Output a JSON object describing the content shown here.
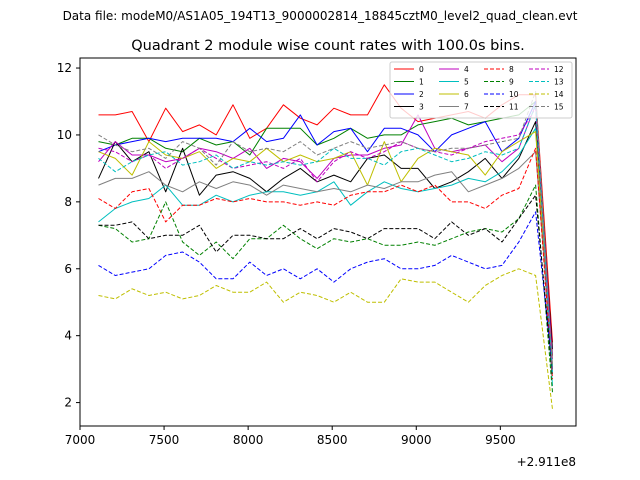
{
  "chart_data": {
    "type": "line",
    "suptitle": "Data file: modeM0/AS1A05_194T13_9000002814_18845cztM0_level2_quad_clean.evt",
    "title": "Quadrant 2 module wise count rates with 100.0s bins.",
    "xlabel": "",
    "ylabel": "",
    "x_offset_label": "+2.911e8",
    "xlim": [
      7000,
      9950
    ],
    "ylim": [
      1.3,
      12.3
    ],
    "x_ticks": [
      7000,
      7500,
      8000,
      8500,
      9000,
      9500
    ],
    "x_tick_labels": [
      "7000",
      "7500",
      "8000",
      "8500",
      "9000",
      "9500"
    ],
    "y_ticks": [
      2,
      4,
      6,
      8,
      10,
      12
    ],
    "y_tick_labels": [
      "2",
      "4",
      "6",
      "8",
      "10",
      "12"
    ],
    "grid": false,
    "legend_position": "top-right",
    "x": [
      7110,
      7210,
      7310,
      7410,
      7510,
      7610,
      7710,
      7810,
      7910,
      8010,
      8110,
      8210,
      8310,
      8410,
      8510,
      8610,
      8710,
      8810,
      8910,
      9010,
      9110,
      9210,
      9310,
      9410,
      9510,
      9610,
      9710,
      9810
    ],
    "series": [
      {
        "name": "0",
        "color": "#ff0000",
        "dash": "solid",
        "values": [
          10.6,
          10.6,
          10.7,
          9.8,
          10.8,
          10.1,
          10.3,
          10.0,
          10.9,
          9.9,
          10.2,
          10.9,
          10.5,
          10.3,
          10.8,
          10.6,
          10.6,
          11.5,
          10.8,
          10.4,
          10.5,
          10.6,
          10.7,
          10.5,
          10.9,
          11.2,
          11.2,
          3.8
        ]
      },
      {
        "name": "1",
        "color": "#008000",
        "dash": "solid",
        "values": [
          9.8,
          9.7,
          9.9,
          9.9,
          9.6,
          9.5,
          9.9,
          9.7,
          9.8,
          9.4,
          10.2,
          10.2,
          10.2,
          9.7,
          9.9,
          10.2,
          9.9,
          10.0,
          10.0,
          10.3,
          10.4,
          10.5,
          10.3,
          10.4,
          10.5,
          10.6,
          11.0,
          3.4
        ]
      },
      {
        "name": "2",
        "color": "#0000ff",
        "dash": "solid",
        "values": [
          9.5,
          9.7,
          9.8,
          9.9,
          9.8,
          9.9,
          9.9,
          9.9,
          9.8,
          10.2,
          9.8,
          9.9,
          10.6,
          9.7,
          10.1,
          10.2,
          9.5,
          10.2,
          10.2,
          10.0,
          9.5,
          10.0,
          10.2,
          10.4,
          9.5,
          9.9,
          11.0,
          3.0
        ]
      },
      {
        "name": "3",
        "color": "#000000",
        "dash": "solid",
        "values": [
          8.7,
          9.8,
          9.2,
          9.5,
          8.3,
          9.6,
          8.2,
          8.8,
          8.9,
          8.7,
          8.3,
          8.7,
          9.0,
          8.6,
          8.8,
          8.6,
          9.3,
          9.4,
          9.0,
          9.0,
          8.4,
          8.6,
          8.9,
          9.3,
          8.7,
          9.3,
          10.4,
          3.6
        ]
      },
      {
        "name": "4",
        "color": "#bf00bf",
        "dash": "solid",
        "values": [
          9.2,
          9.8,
          9.4,
          9.4,
          9.2,
          9.3,
          9.6,
          9.5,
          9.3,
          9.6,
          9.0,
          9.3,
          9.2,
          8.7,
          9.3,
          9.4,
          9.4,
          9.6,
          9.7,
          10.6,
          9.6,
          9.5,
          9.6,
          9.7,
          9.2,
          9.6,
          10.9,
          3.3
        ]
      },
      {
        "name": "5",
        "color": "#00bfbf",
        "dash": "solid",
        "values": [
          7.4,
          7.8,
          8.0,
          8.1,
          8.5,
          7.9,
          7.9,
          8.2,
          8.0,
          8.2,
          8.3,
          8.3,
          8.2,
          8.3,
          8.6,
          7.9,
          8.3,
          8.6,
          8.4,
          8.3,
          8.4,
          8.5,
          8.7,
          8.6,
          8.9,
          9.4,
          10.2,
          2.5
        ]
      },
      {
        "name": "6",
        "color": "#bfbf00",
        "dash": "solid",
        "values": [
          9.5,
          9.3,
          8.8,
          9.8,
          9.4,
          9.3,
          9.5,
          9.0,
          9.3,
          9.2,
          9.6,
          9.2,
          9.4,
          9.2,
          9.3,
          9.5,
          8.5,
          9.8,
          8.6,
          9.3,
          9.6,
          9.5,
          9.4,
          8.8,
          9.5,
          9.8,
          10.1,
          3.1
        ]
      },
      {
        "name": "7",
        "color": "#808080",
        "dash": "solid",
        "values": [
          8.5,
          8.7,
          8.7,
          8.9,
          8.5,
          8.3,
          8.6,
          8.4,
          8.6,
          8.5,
          8.2,
          8.5,
          8.4,
          8.3,
          8.4,
          8.3,
          8.5,
          8.4,
          8.6,
          8.6,
          8.8,
          8.9,
          8.3,
          8.5,
          8.7,
          9.0,
          9.5,
          3.1
        ]
      },
      {
        "name": "8",
        "color": "#ff0000",
        "dash": "dashed",
        "values": [
          8.1,
          7.8,
          8.3,
          8.4,
          7.4,
          7.9,
          7.9,
          8.1,
          8.0,
          8.1,
          8.0,
          8.0,
          7.9,
          8.0,
          7.9,
          8.2,
          8.3,
          8.3,
          8.5,
          8.3,
          8.5,
          8.0,
          8.0,
          7.8,
          8.2,
          8.4,
          9.6,
          2.7
        ]
      },
      {
        "name": "9",
        "color": "#008000",
        "dash": "dashed",
        "values": [
          7.3,
          7.2,
          6.8,
          6.9,
          8.0,
          6.8,
          6.4,
          6.8,
          6.3,
          6.9,
          6.9,
          7.3,
          6.9,
          6.6,
          6.9,
          6.8,
          6.9,
          6.7,
          6.7,
          6.8,
          6.7,
          6.9,
          7.1,
          7.2,
          7.1,
          7.5,
          8.5,
          2.3
        ]
      },
      {
        "name": "10",
        "color": "#0000ff",
        "dash": "dashed",
        "values": [
          6.1,
          5.8,
          5.9,
          6.0,
          6.4,
          6.5,
          6.2,
          5.7,
          5.7,
          6.2,
          5.8,
          6.0,
          5.7,
          6.0,
          5.6,
          6.0,
          6.2,
          6.3,
          6.0,
          6.0,
          6.1,
          6.4,
          6.2,
          6.0,
          6.1,
          6.8,
          7.7,
          3.0
        ]
      },
      {
        "name": "11",
        "color": "#000000",
        "dash": "dashed",
        "values": [
          7.3,
          7.3,
          7.4,
          6.9,
          7.0,
          7.0,
          7.3,
          6.5,
          7.0,
          7.0,
          6.9,
          6.9,
          7.2,
          6.9,
          7.2,
          7.1,
          6.9,
          7.2,
          7.2,
          7.2,
          6.9,
          7.4,
          7.0,
          7.2,
          6.8,
          7.5,
          8.2,
          2.8
        ]
      },
      {
        "name": "12",
        "color": "#bf00bf",
        "dash": "dashed",
        "values": [
          9.6,
          9.5,
          9.2,
          9.4,
          9.0,
          9.3,
          9.6,
          9.3,
          9.0,
          9.1,
          9.2,
          9.0,
          9.3,
          8.6,
          9.2,
          9.5,
          9.3,
          9.5,
          9.8,
          9.6,
          9.5,
          9.4,
          9.6,
          9.8,
          9.9,
          10.0,
          10.8,
          2.9
        ]
      },
      {
        "name": "13",
        "color": "#00bfbf",
        "dash": "dashed",
        "values": [
          9.3,
          8.9,
          9.2,
          9.4,
          9.5,
          9.1,
          9.2,
          9.4,
          9.0,
          9.2,
          9.1,
          9.2,
          9.1,
          9.2,
          9.6,
          9.3,
          9.3,
          9.1,
          9.5,
          9.6,
          9.4,
          9.2,
          9.3,
          9.5,
          9.4,
          9.6,
          10.9,
          2.9
        ]
      },
      {
        "name": "14",
        "color": "#bfbf00",
        "dash": "dashed",
        "values": [
          5.2,
          5.1,
          5.4,
          5.2,
          5.3,
          5.1,
          5.2,
          5.5,
          5.3,
          5.3,
          5.6,
          5.0,
          5.3,
          5.2,
          5.0,
          5.3,
          5.0,
          5.0,
          5.7,
          5.6,
          5.6,
          5.3,
          5.0,
          5.5,
          5.8,
          6.0,
          5.8,
          1.8
        ]
      },
      {
        "name": "15",
        "color": "#808080",
        "dash": "dashed",
        "values": [
          10.0,
          9.7,
          9.5,
          9.6,
          9.3,
          9.8,
          9.6,
          9.1,
          9.8,
          9.5,
          9.6,
          9.5,
          9.8,
          9.4,
          9.6,
          9.8,
          9.6,
          9.7,
          9.8,
          9.6,
          9.5,
          9.6,
          9.6,
          9.7,
          9.8,
          9.9,
          11.3,
          2.9
        ]
      }
    ]
  }
}
